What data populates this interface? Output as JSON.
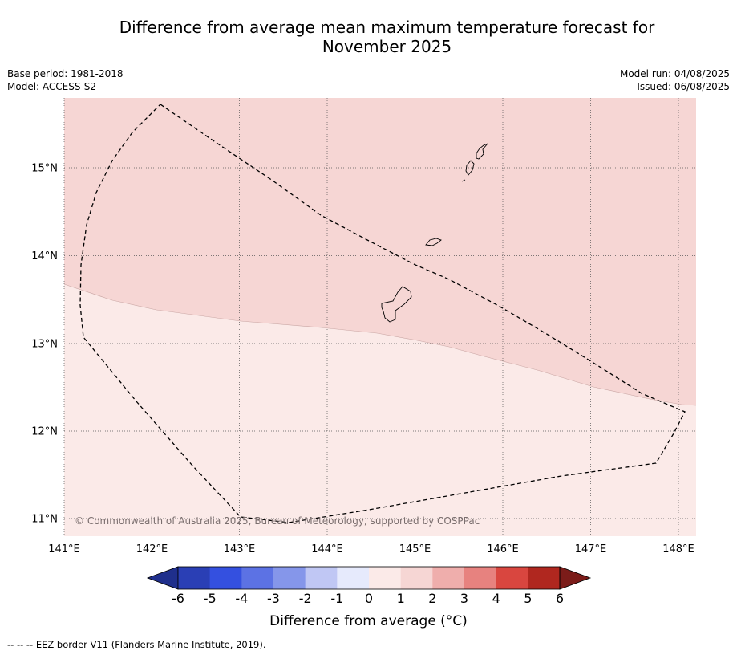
{
  "title_line1": "Difference from average mean maximum temperature forecast for",
  "title_line2": "November 2025",
  "base_period": "Base period: 1981-2018",
  "model": "Model: ACCESS-S2",
  "model_run": "Model run: 04/08/2025",
  "issued": "Issued: 06/08/2025",
  "copyright": "© Commonwealth of Australia 2025, Bureau of Meteorology, supported by COSPPac",
  "lat_labels": [
    "15°N",
    "14°N",
    "13°N",
    "12°N",
    "11°N"
  ],
  "lon_labels": [
    "141°E",
    "142°E",
    "143°E",
    "144°E",
    "145°E",
    "146°E",
    "147°E",
    "148°E"
  ],
  "colorbar": {
    "title": "Difference from average (°C)",
    "ticks": [
      "-6",
      "-5",
      "-4",
      "-3",
      "-2",
      "-1",
      "0",
      "1",
      "2",
      "3",
      "4",
      "5",
      "6"
    ],
    "colors": [
      "#1f2f8c",
      "#2a3fb5",
      "#3450e0",
      "#5c72e4",
      "#8596ea",
      "#c0c7f4",
      "#e6eafc",
      "#fbeae8",
      "#f6d6d4",
      "#efaeac",
      "#e7827f",
      "#d9463f",
      "#b0271f",
      "#7b1c19"
    ]
  },
  "map_colors": {
    "category_0_to_1": "#fbeae8",
    "category_1_to_2": "#f6d6d4"
  },
  "footer": "--  --  -- EEZ border V11 (Flanders Marine Institute, 2019)."
}
